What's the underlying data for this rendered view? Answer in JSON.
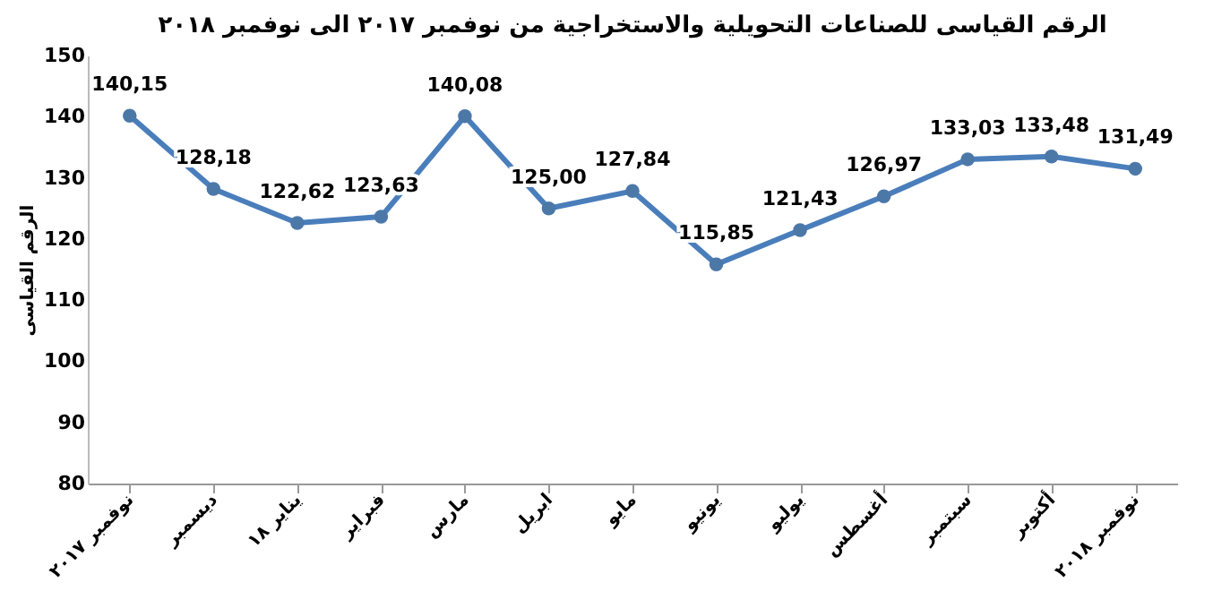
{
  "chart_data": {
    "type": "line",
    "title": "الرقم القياسى للصناعات التحويلية والاستخراجية من نوفمبر ٢٠١٧ الى نوفمبر ٢٠١٨",
    "ylabel": "الرقم القياسى",
    "categories": [
      "نوفمبر ٢٠١٧",
      "ديسمبر",
      "يناير ١٨",
      "فبراير",
      "مارس",
      "ابريل",
      "مايو",
      "يونيو",
      "يوليو",
      "أغسطس",
      "سبتمبر",
      "أكتوبر",
      "نوفمبر ٢٠١٨"
    ],
    "series": [
      {
        "color": "#4a7ebb",
        "values": [
          140.15,
          128.18,
          122.62,
          123.63,
          140.08,
          125.0,
          127.84,
          115.85,
          121.43,
          126.97,
          133.03,
          133.48,
          131.49
        ],
        "value_labels": [
          "140,15",
          "128,18",
          "122,62",
          "123,63",
          "140,08",
          "125,00",
          "127,84",
          "115,85",
          "121,43",
          "126,97",
          "133,03",
          "133,48",
          "131,49"
        ]
      }
    ],
    "ylim": [
      80,
      150
    ],
    "yticks": [
      80,
      90,
      100,
      110,
      120,
      130,
      140,
      150
    ],
    "grid": false,
    "marker": "circle",
    "line_style": "solid"
  }
}
